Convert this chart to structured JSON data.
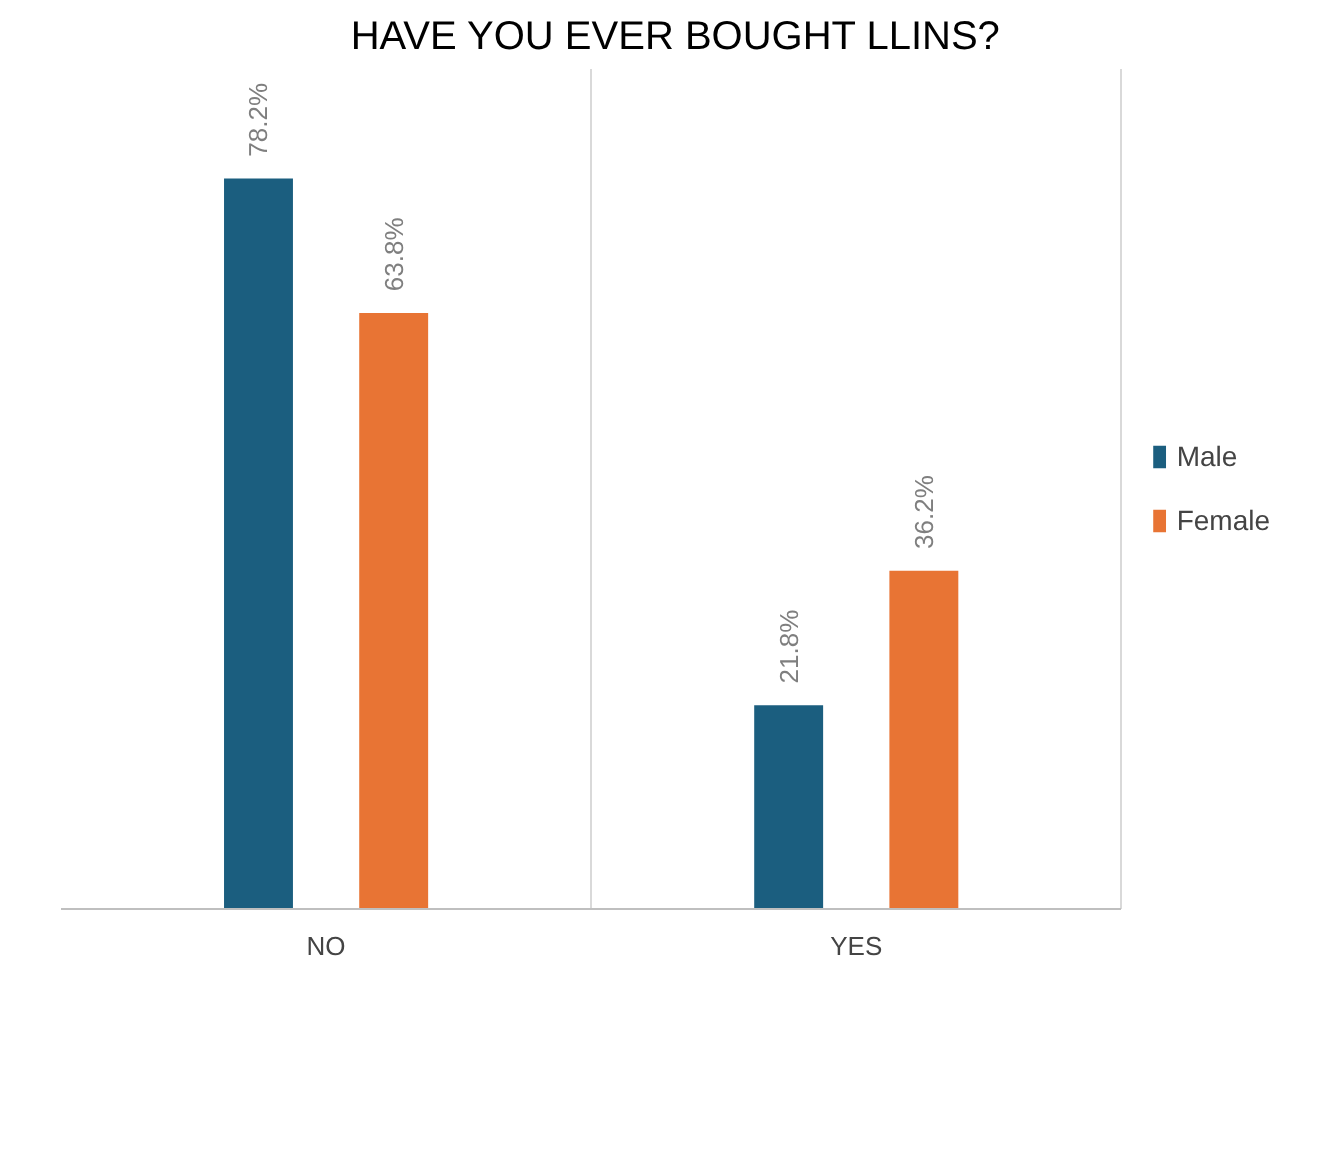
{
  "chart_data": {
    "type": "bar",
    "title": "HAVE YOU EVER BOUGHT LLINS?",
    "categories": [
      "NO",
      "YES"
    ],
    "series": [
      {
        "name": "Male",
        "color": "#1b5e7f",
        "values": [
          78.2,
          21.8
        ],
        "value_labels": [
          "78.2%",
          "21.8%"
        ]
      },
      {
        "name": "Female",
        "color": "#e87434",
        "values": [
          63.8,
          36.2
        ],
        "value_labels": [
          "63.8%",
          "36.2%"
        ]
      }
    ],
    "grid": "x",
    "legend": "right"
  }
}
